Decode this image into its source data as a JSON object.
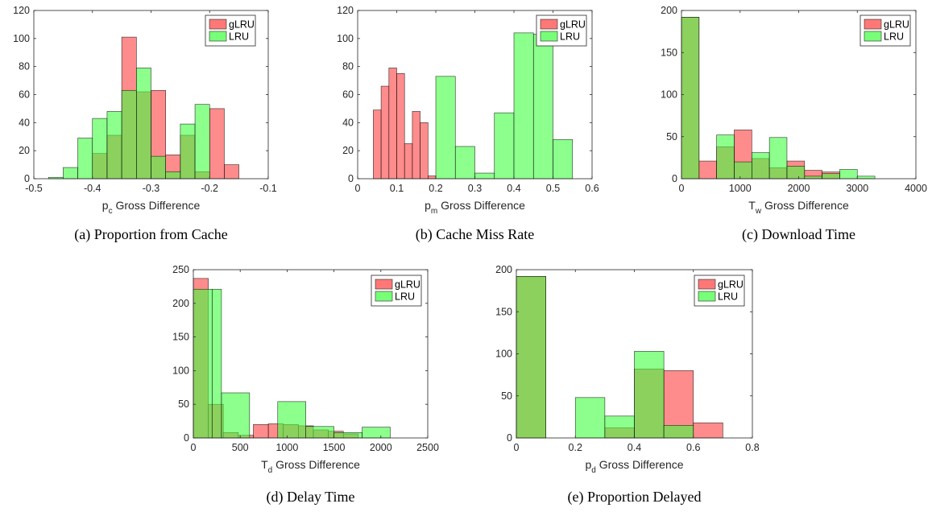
{
  "colors": {
    "glru": "#ff3f3f",
    "lru": "#3fff3f",
    "overlap": "#3f9f3f"
  },
  "legend": [
    "gLRU",
    "LRU"
  ],
  "chart_data": [
    {
      "type": "bar",
      "caption": "(a) Proportion from Cache",
      "xlabel": {
        "main": "p",
        "sub": "c",
        "rest": " Gross Difference"
      },
      "xlim": [
        -0.5,
        -0.1
      ],
      "ylim": [
        0,
        120
      ],
      "xticks": [
        -0.5,
        -0.4,
        -0.3,
        -0.2,
        -0.1
      ],
      "xtick_labels": [
        "-0.5",
        "-0.4",
        "-0.3",
        "-0.2",
        "-0.1"
      ],
      "yticks": [
        0,
        20,
        40,
        60,
        80,
        100,
        120
      ],
      "series": [
        {
          "name": "gLRU",
          "bins": [
            [
              -0.4,
              -0.375,
              18
            ],
            [
              -0.375,
              -0.35,
              31
            ],
            [
              -0.35,
              -0.325,
              101
            ],
            [
              -0.325,
              -0.3,
              62
            ],
            [
              -0.3,
              -0.275,
              63
            ],
            [
              -0.275,
              -0.25,
              17
            ],
            [
              -0.25,
              -0.225,
              31
            ],
            [
              -0.225,
              -0.2,
              5
            ],
            [
              -0.2,
              -0.175,
              50
            ],
            [
              -0.175,
              -0.15,
              10
            ]
          ]
        },
        {
          "name": "LRU",
          "bins": [
            [
              -0.475,
              -0.45,
              1
            ],
            [
              -0.45,
              -0.425,
              8
            ],
            [
              -0.425,
              -0.4,
              29
            ],
            [
              -0.4,
              -0.375,
              43
            ],
            [
              -0.375,
              -0.35,
              48
            ],
            [
              -0.35,
              -0.325,
              63
            ],
            [
              -0.325,
              -0.3,
              79
            ],
            [
              -0.3,
              -0.275,
              16
            ],
            [
              -0.275,
              -0.25,
              5
            ],
            [
              -0.25,
              -0.225,
              39
            ],
            [
              -0.225,
              -0.2,
              53
            ]
          ]
        }
      ]
    },
    {
      "type": "bar",
      "caption": "(b) Cache Miss Rate",
      "xlabel": {
        "main": "p",
        "sub": "m",
        "rest": " Gross Difference"
      },
      "xlim": [
        0,
        0.6
      ],
      "ylim": [
        0,
        120
      ],
      "xticks": [
        0,
        0.1,
        0.2,
        0.3,
        0.4,
        0.5,
        0.6
      ],
      "xtick_labels": [
        "0",
        "0.1",
        "0.2",
        "0.3",
        "0.4",
        "0.5",
        "0.6"
      ],
      "yticks": [
        0,
        20,
        40,
        60,
        80,
        100,
        120
      ],
      "series": [
        {
          "name": "gLRU",
          "bins": [
            [
              0.04,
              0.06,
              49
            ],
            [
              0.06,
              0.08,
              66
            ],
            [
              0.08,
              0.1,
              79
            ],
            [
              0.1,
              0.12,
              75
            ],
            [
              0.12,
              0.14,
              25
            ],
            [
              0.14,
              0.16,
              48
            ],
            [
              0.16,
              0.18,
              40
            ],
            [
              0.18,
              0.2,
              2
            ]
          ]
        },
        {
          "name": "LRU",
          "bins": [
            [
              0.2,
              0.25,
              73
            ],
            [
              0.25,
              0.3,
              23
            ],
            [
              0.3,
              0.35,
              4
            ],
            [
              0.35,
              0.4,
              47
            ],
            [
              0.4,
              0.45,
              104
            ],
            [
              0.45,
              0.5,
              103
            ],
            [
              0.5,
              0.55,
              28
            ]
          ]
        }
      ]
    },
    {
      "type": "bar",
      "caption": "(c) Download Time",
      "xlabel": {
        "main": "T",
        "sub": "w",
        "rest": " Gross Difference"
      },
      "xlim": [
        0,
        4000
      ],
      "ylim": [
        0,
        200
      ],
      "xticks": [
        0,
        1000,
        2000,
        3000,
        4000
      ],
      "xtick_labels": [
        "0",
        "1000",
        "2000",
        "3000",
        "4000"
      ],
      "yticks": [
        0,
        50,
        100,
        150,
        200
      ],
      "series": [
        {
          "name": "gLRU",
          "bins": [
            [
              0,
              300,
              192
            ],
            [
              300,
              600,
              21
            ],
            [
              600,
              900,
              38
            ],
            [
              900,
              1200,
              58
            ],
            [
              1200,
              1500,
              24
            ],
            [
              1500,
              1800,
              13
            ],
            [
              1800,
              2100,
              21
            ],
            [
              2100,
              2400,
              10
            ],
            [
              2400,
              2700,
              8
            ],
            [
              2700,
              3000,
              0
            ],
            [
              3000,
              3300,
              0
            ]
          ]
        },
        {
          "name": "LRU",
          "bins": [
            [
              0,
              300,
              192
            ],
            [
              300,
              600,
              0
            ],
            [
              600,
              900,
              52
            ],
            [
              900,
              1200,
              20
            ],
            [
              1200,
              1500,
              31
            ],
            [
              1500,
              1800,
              49
            ],
            [
              1800,
              2100,
              15
            ],
            [
              2100,
              2400,
              3
            ],
            [
              2400,
              2700,
              6
            ],
            [
              2700,
              3000,
              11
            ],
            [
              3000,
              3300,
              3
            ]
          ]
        }
      ]
    },
    {
      "type": "bar",
      "caption": "(d) Delay Time",
      "xlabel": {
        "main": "T",
        "sub": "d",
        "rest": " Gross Difference"
      },
      "xlim": [
        0,
        2500
      ],
      "ylim": [
        0,
        250
      ],
      "xticks": [
        0,
        500,
        1000,
        1500,
        2000,
        2500
      ],
      "xtick_labels": [
        "0",
        "500",
        "1000",
        "1500",
        "2000",
        "2500"
      ],
      "yticks": [
        0,
        50,
        100,
        150,
        200,
        250
      ],
      "series": [
        {
          "name": "gLRU",
          "bins": [
            [
              0,
              160,
              237
            ],
            [
              160,
              320,
              50
            ],
            [
              320,
              480,
              8
            ],
            [
              480,
              640,
              4
            ],
            [
              640,
              800,
              20
            ],
            [
              800,
              960,
              21
            ],
            [
              960,
              1120,
              20
            ],
            [
              1120,
              1280,
              18
            ],
            [
              1280,
              1440,
              12
            ],
            [
              1440,
              1600,
              10
            ],
            [
              1600,
              1760,
              6
            ]
          ]
        },
        {
          "name": "LRU",
          "bins": [
            [
              0,
              200,
              221
            ],
            [
              200,
              300,
              221
            ],
            [
              300,
              600,
              67
            ],
            [
              600,
              900,
              0
            ],
            [
              900,
              1200,
              54
            ],
            [
              1200,
              1500,
              17
            ],
            [
              1500,
              1800,
              8
            ],
            [
              1800,
              2100,
              16
            ]
          ]
        }
      ]
    },
    {
      "type": "bar",
      "caption": "(e) Proportion Delayed",
      "xlabel": {
        "main": "p",
        "sub": "d",
        "rest": " Gross Difference"
      },
      "xlim": [
        0,
        0.8
      ],
      "ylim": [
        0,
        200
      ],
      "xticks": [
        0,
        0.2,
        0.4,
        0.6,
        0.8
      ],
      "xtick_labels": [
        "0",
        "0.2",
        "0.4",
        "0.6",
        "0.8"
      ],
      "yticks": [
        0,
        50,
        100,
        150,
        200
      ],
      "series": [
        {
          "name": "gLRU",
          "bins": [
            [
              0,
              0.1,
              192
            ],
            [
              0.1,
              0.2,
              0
            ],
            [
              0.2,
              0.3,
              0
            ],
            [
              0.3,
              0.4,
              12
            ],
            [
              0.4,
              0.5,
              82
            ],
            [
              0.5,
              0.6,
              80
            ],
            [
              0.6,
              0.7,
              18
            ]
          ]
        },
        {
          "name": "LRU",
          "bins": [
            [
              0,
              0.1,
              192
            ],
            [
              0.1,
              0.2,
              0
            ],
            [
              0.2,
              0.3,
              48
            ],
            [
              0.3,
              0.4,
              26
            ],
            [
              0.4,
              0.5,
              103
            ],
            [
              0.5,
              0.6,
              15
            ],
            [
              0.6,
              0.7,
              0
            ]
          ]
        }
      ]
    }
  ]
}
